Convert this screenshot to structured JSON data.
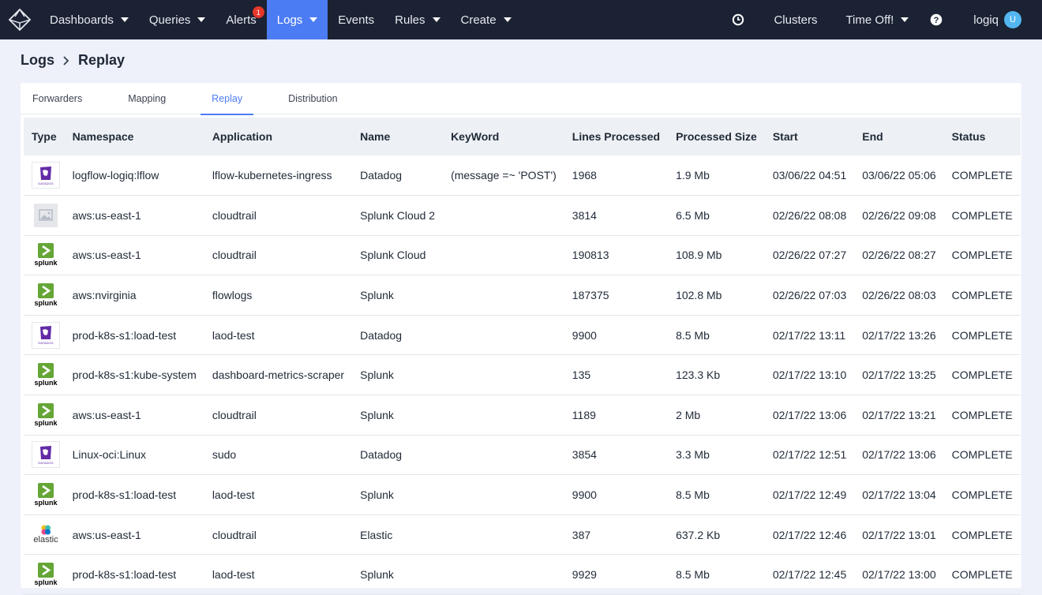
{
  "nav": {
    "items": [
      {
        "label": "Dashboards",
        "caret": true
      },
      {
        "label": "Queries",
        "caret": true
      },
      {
        "label": "Alerts",
        "badge": "1"
      },
      {
        "label": "Logs",
        "caret": true,
        "active": true
      },
      {
        "label": "Events"
      },
      {
        "label": "Rules",
        "caret": true
      },
      {
        "label": "Create",
        "caret": true
      }
    ],
    "clusters": "Clusters",
    "time_off": "Time Off!",
    "user": "logiq",
    "avatar_initial": "U"
  },
  "breadcrumb": {
    "parent": "Logs",
    "current": "Replay"
  },
  "tabs": [
    "Forwarders",
    "Mapping",
    "Replay",
    "Distribution"
  ],
  "active_tab": "Replay",
  "table": {
    "columns": [
      "Type",
      "Namespace",
      "Application",
      "Name",
      "KeyWord",
      "Lines Processed",
      "Processed Size",
      "Start",
      "End",
      "Status"
    ],
    "rows": [
      {
        "type": "datadog",
        "namespace": "logflow-logiq:lflow",
        "application": "lflow-kubernetes-ingress",
        "name": "Datadog",
        "keyword": "(message =~ 'POST')",
        "lines": "1968",
        "size": "1.9 Mb",
        "start": "03/06/22 04:51",
        "end": "03/06/22 05:06",
        "status": "COMPLETE"
      },
      {
        "type": "placeholder",
        "namespace": "aws:us-east-1",
        "application": "cloudtrail",
        "name": "Splunk Cloud 2",
        "keyword": "",
        "lines": "3814",
        "size": "6.5 Mb",
        "start": "02/26/22 08:08",
        "end": "02/26/22 09:08",
        "status": "COMPLETE"
      },
      {
        "type": "splunk",
        "namespace": "aws:us-east-1",
        "application": "cloudtrail",
        "name": "Splunk Cloud",
        "keyword": "",
        "lines": "190813",
        "size": "108.9 Mb",
        "start": "02/26/22 07:27",
        "end": "02/26/22 08:27",
        "status": "COMPLETE"
      },
      {
        "type": "splunk",
        "namespace": "aws:nvirginia",
        "application": "flowlogs",
        "name": "Splunk",
        "keyword": "",
        "lines": "187375",
        "size": "102.8 Mb",
        "start": "02/26/22 07:03",
        "end": "02/26/22 08:03",
        "status": "COMPLETE"
      },
      {
        "type": "datadog",
        "namespace": "prod-k8s-s1:load-test",
        "application": "laod-test",
        "name": "Datadog",
        "keyword": "",
        "lines": "9900",
        "size": "8.5 Mb",
        "start": "02/17/22 13:11",
        "end": "02/17/22 13:26",
        "status": "COMPLETE"
      },
      {
        "type": "splunk",
        "namespace": "prod-k8s-s1:kube-system",
        "application": "dashboard-metrics-scraper",
        "name": "Splunk",
        "keyword": "",
        "lines": "135",
        "size": "123.3 Kb",
        "start": "02/17/22 13:10",
        "end": "02/17/22 13:25",
        "status": "COMPLETE"
      },
      {
        "type": "splunk",
        "namespace": "aws:us-east-1",
        "application": "cloudtrail",
        "name": "Splunk",
        "keyword": "",
        "lines": "1189",
        "size": "2 Mb",
        "start": "02/17/22 13:06",
        "end": "02/17/22 13:21",
        "status": "COMPLETE"
      },
      {
        "type": "datadog",
        "namespace": "Linux-oci:Linux",
        "application": "sudo",
        "name": "Datadog",
        "keyword": "",
        "lines": "3854",
        "size": "3.3 Mb",
        "start": "02/17/22 12:51",
        "end": "02/17/22 13:06",
        "status": "COMPLETE"
      },
      {
        "type": "splunk",
        "namespace": "prod-k8s-s1:load-test",
        "application": "laod-test",
        "name": "Splunk",
        "keyword": "",
        "lines": "9900",
        "size": "8.5 Mb",
        "start": "02/17/22 12:49",
        "end": "02/17/22 13:04",
        "status": "COMPLETE"
      },
      {
        "type": "elastic",
        "namespace": "aws:us-east-1",
        "application": "cloudtrail",
        "name": "Elastic",
        "keyword": "",
        "lines": "387",
        "size": "637.2 Kb",
        "start": "02/17/22 12:46",
        "end": "02/17/22 13:01",
        "status": "COMPLETE"
      },
      {
        "type": "splunk",
        "namespace": "prod-k8s-s1:load-test",
        "application": "laod-test",
        "name": "Splunk",
        "keyword": "",
        "lines": "9929",
        "size": "8.5 Mb",
        "start": "02/17/22 12:45",
        "end": "02/17/22 13:00",
        "status": "COMPLETE"
      }
    ]
  },
  "logo_text": {
    "splunk": "splunk",
    "datadog": "DATADOG",
    "elastic": "elastic"
  },
  "colors": {
    "nav_bg": "#1b2233",
    "active_nav": "#4c7cf3",
    "splunk_green": "#65a637",
    "datadog_purple": "#632ca6",
    "badge_red": "#e5372a"
  },
  "icons": {
    "app_logo": "cube-logo-icon",
    "history": "clock-icon",
    "help": "help-icon"
  }
}
